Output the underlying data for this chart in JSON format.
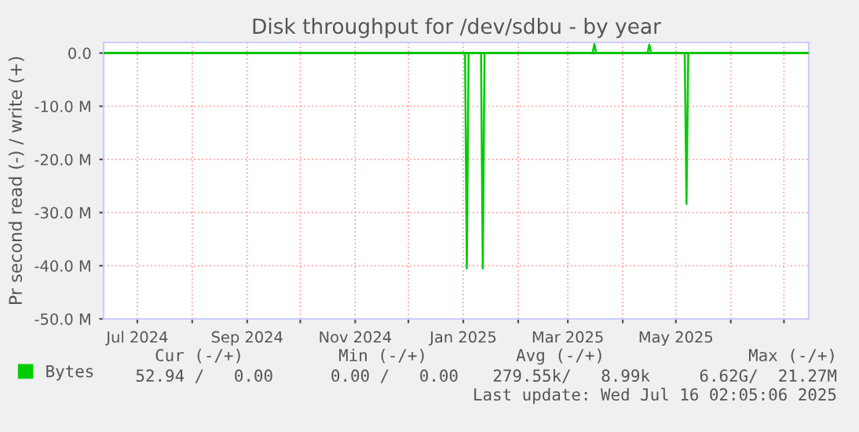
{
  "chart_data": {
    "type": "line",
    "title": "Disk throughput for /dev/sdbu - by year",
    "ylabel": "Pr second read (-) / write (+)",
    "xlim": [
      "2024-06-12",
      "2025-07-15"
    ],
    "xticks": [
      {
        "value": "2024-07-01",
        "label": "Jul 2024"
      },
      {
        "value": "2024-08-01",
        "label": null
      },
      {
        "value": "2024-09-01",
        "label": "Sep 2024"
      },
      {
        "value": "2024-10-01",
        "label": null
      },
      {
        "value": "2024-11-01",
        "label": "Nov 2024"
      },
      {
        "value": "2024-12-01",
        "label": null
      },
      {
        "value": "2025-01-01",
        "label": "Jan 2025"
      },
      {
        "value": "2025-02-01",
        "label": null
      },
      {
        "value": "2025-03-01",
        "label": "Mar 2025"
      },
      {
        "value": "2025-04-01",
        "label": null
      },
      {
        "value": "2025-05-01",
        "label": "May 2025"
      },
      {
        "value": "2025-06-01",
        "label": null
      },
      {
        "value": "2025-07-01",
        "label": null
      }
    ],
    "ylim": [
      -50,
      2
    ],
    "yticks": [
      {
        "value": 0,
        "label": "0.0"
      },
      {
        "value": -10,
        "label": "-10.0 M"
      },
      {
        "value": -20,
        "label": "-20.0 M"
      },
      {
        "value": -30,
        "label": "-30.0 M"
      },
      {
        "value": -40,
        "label": "-40.0 M"
      },
      {
        "value": -50,
        "label": "-50.0 M"
      }
    ],
    "grid": true,
    "legend": "bottom",
    "ref_lines": [
      {
        "axis": "y",
        "value": 0,
        "label": null,
        "color": "#000000"
      }
    ],
    "series": [
      {
        "name": "Bytes",
        "color": "#00cc00",
        "x": [
          "2024-06-12",
          "2025-01-02",
          "2025-01-03",
          "2025-01-04",
          "2025-01-11",
          "2025-01-12",
          "2025-01-13",
          "2025-05-06",
          "2025-05-07",
          "2025-05-08",
          "2025-07-15"
        ],
        "values": [
          0,
          0,
          -40.5,
          0,
          0,
          -40.5,
          0,
          0,
          -28.4,
          0,
          0
        ]
      },
      {
        "color": "#00cc00",
        "x": [
          "2024-06-12",
          "2025-03-15",
          "2025-03-16",
          "2025-03-17",
          "2025-04-15",
          "2025-04-16",
          "2025-04-17",
          "2025-07-15"
        ],
        "values": [
          0,
          0,
          1.7,
          0,
          0,
          1.6,
          0,
          0
        ]
      }
    ],
    "annotations": [
      "Cur (-/+)",
      "Min (-/+)",
      "Avg (-/+)",
      "Max (-/+)",
      "52.94 /   0.00",
      "0.00 /   0.00",
      "279.55k/   8.99k",
      "6.62G/  21.27M",
      "Last update: Wed Jul 16 02:05:06 2025"
    ]
  }
}
